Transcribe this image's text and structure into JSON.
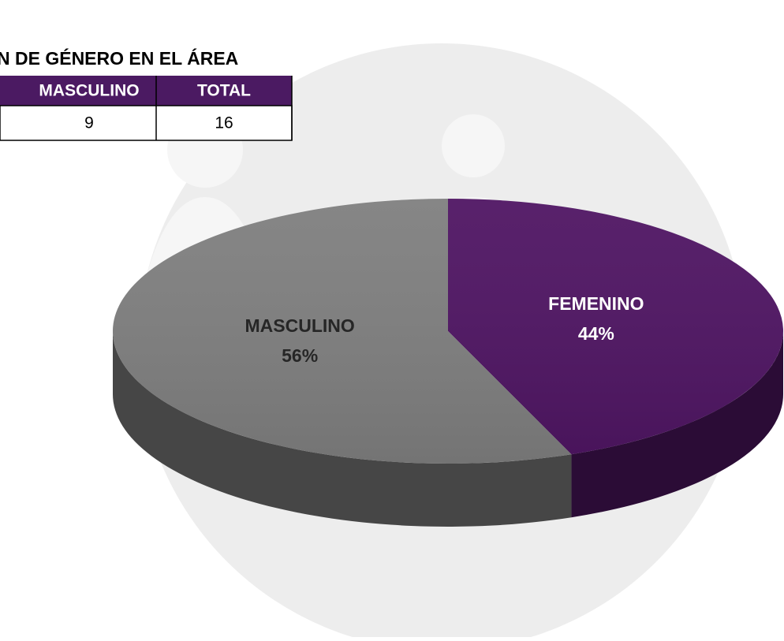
{
  "header": {
    "title": "N DE GÉNERO EN EL ÁREA"
  },
  "table": {
    "headers": [
      "MASCULINO",
      "TOTAL"
    ],
    "rows": [
      [
        9,
        16
      ]
    ]
  },
  "chart_data": {
    "type": "pie",
    "categories": [
      "FEMENINO",
      "MASCULINO"
    ],
    "values": [
      44,
      56
    ],
    "value_labels": [
      "44%",
      "56%"
    ],
    "colors": [
      "#4f1563",
      "#7f7f7f"
    ]
  }
}
